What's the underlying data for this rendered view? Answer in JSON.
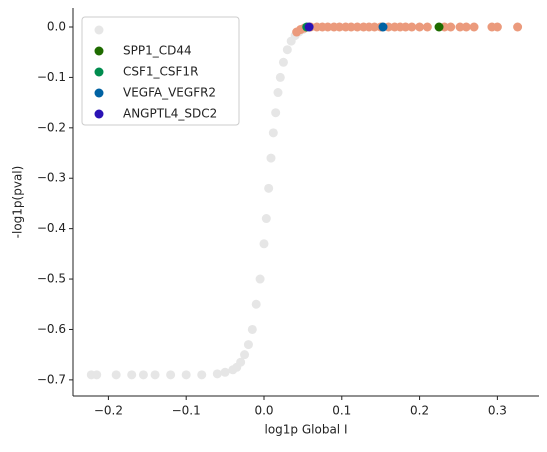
{
  "chart_data": {
    "type": "scatter",
    "xlabel": "log1p Global I",
    "ylabel": "-log1p(pval)",
    "xlim": [
      -0.2455,
      0.3535
    ],
    "ylim": [
      -0.732,
      0.0377
    ],
    "xticks": [
      {
        "value": -0.2,
        "label": "−0.2"
      },
      {
        "value": -0.1,
        "label": "−0.1"
      },
      {
        "value": 0,
        "label": "0.0"
      },
      0.1,
      0.2,
      0.3
    ],
    "yticks": [
      {
        "value": 0,
        "label": "0.0"
      },
      {
        "value": -0.1,
        "label": "−0.1"
      },
      {
        "value": -0.2,
        "label": "−0.2"
      },
      {
        "value": -0.3,
        "label": "−0.3"
      },
      {
        "value": -0.4,
        "label": "−0.4"
      },
      {
        "value": -0.5,
        "label": "−0.5"
      },
      {
        "value": -0.6,
        "label": "−0.6"
      },
      {
        "value": -0.7,
        "label": "−0.7"
      }
    ],
    "legend": "upper left",
    "series": [
      {
        "color": "#e6e6e6",
        "legend": true,
        "x": [
          -0.222,
          -0.215,
          -0.19,
          -0.17,
          -0.155,
          -0.14,
          -0.12,
          -0.1,
          -0.08,
          -0.06,
          -0.05,
          -0.04,
          -0.035,
          -0.03,
          -0.025,
          -0.02,
          -0.015,
          -0.01,
          -0.005,
          0.0,
          0.003,
          0.006,
          0.009,
          0.012,
          0.015,
          0.018,
          0.021,
          0.025,
          0.03,
          0.035,
          0.04,
          0.045,
          0.05
        ],
        "y": [
          -0.69,
          -0.69,
          -0.69,
          -0.69,
          -0.69,
          -0.69,
          -0.69,
          -0.69,
          -0.69,
          -0.688,
          -0.685,
          -0.68,
          -0.675,
          -0.665,
          -0.65,
          -0.63,
          -0.6,
          -0.55,
          -0.5,
          -0.43,
          -0.38,
          -0.32,
          -0.26,
          -0.21,
          -0.17,
          -0.13,
          -0.1,
          -0.07,
          -0.045,
          -0.028,
          -0.017,
          -0.01,
          -0.005
        ]
      },
      {
        "color": "#eb9a7c",
        "legend": false,
        "x": [
          0.042,
          0.047,
          0.052,
          0.06,
          0.068,
          0.075,
          0.082,
          0.09,
          0.097,
          0.105,
          0.112,
          0.12,
          0.128,
          0.135,
          0.142,
          0.15,
          0.16,
          0.168,
          0.175,
          0.182,
          0.19,
          0.2,
          0.21,
          0.232,
          0.24,
          0.252,
          0.26,
          0.27,
          0.293,
          0.3,
          0.326
        ],
        "y": [
          -0.01,
          -0.005,
          -0.002,
          0,
          0,
          0,
          0,
          0,
          0,
          0,
          0,
          0,
          0,
          0,
          0,
          0,
          0,
          0,
          0,
          0,
          0,
          0,
          0,
          0,
          0,
          0,
          0,
          0,
          0,
          0,
          0
        ]
      },
      {
        "name": "SPP1_CD44",
        "color": "#1e6b00",
        "legend": true,
        "x": [
          0.225
        ],
        "y": [
          0
        ]
      },
      {
        "name": "CSF1_CSF1R",
        "color": "#008c4e",
        "legend": true,
        "x": [
          0.055
        ],
        "y": [
          0
        ]
      },
      {
        "name": "VEGFA_VEGFR2",
        "color": "#0062a3",
        "legend": true,
        "x": [
          0.153
        ],
        "y": [
          0
        ]
      },
      {
        "name": "ANGPTL4_SDC2",
        "color": "#2a12b5",
        "legend": true,
        "x": [
          0.058
        ],
        "y": [
          0
        ]
      }
    ]
  }
}
